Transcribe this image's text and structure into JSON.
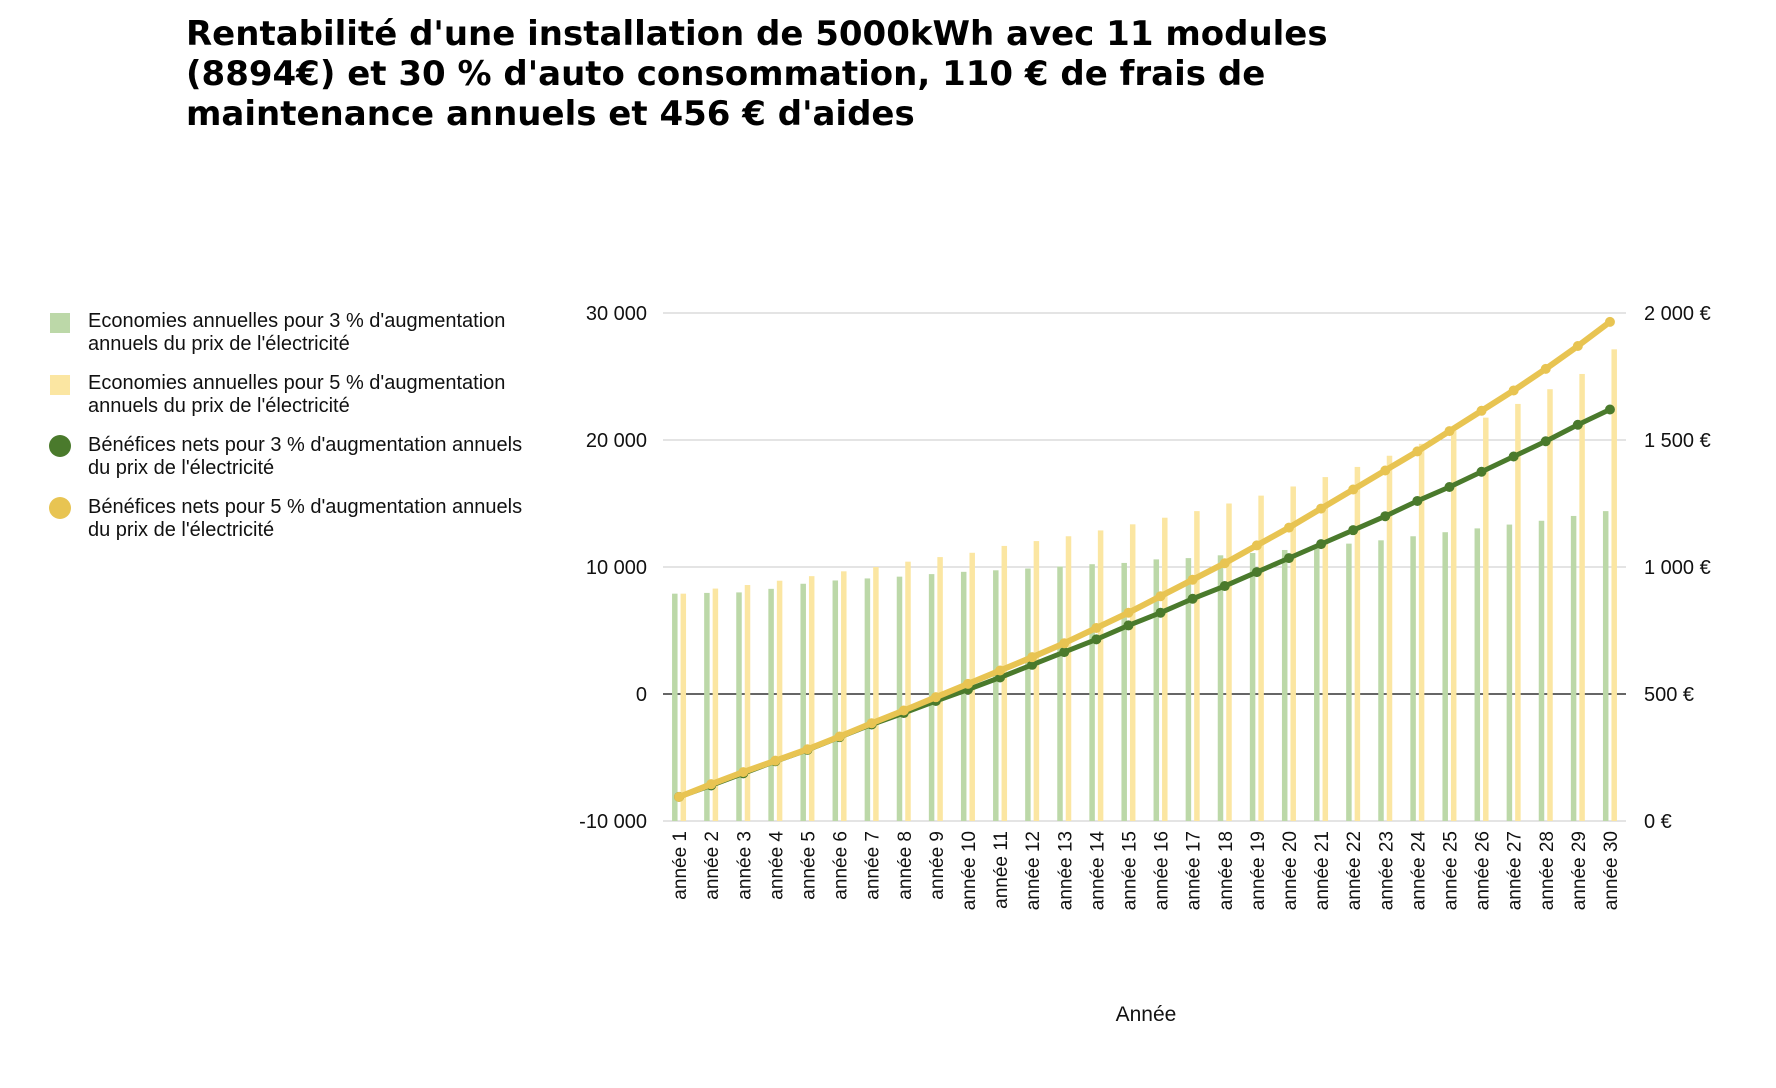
{
  "chart_data": {
    "type": "bar+line",
    "title": "Rentabilité d'une installation de 5000kWh avec 11 modules (8894€) et 30 % d'auto consommation, 110 € de frais de maintenance annuels et 456 € d'aides",
    "xlabel": "Année",
    "ylabel_left": "",
    "ylabel_right": "",
    "legend_position": "left",
    "grid": true,
    "y_left": {
      "range": [
        -10000,
        30000
      ],
      "ticks": [
        -10000,
        0,
        10000,
        20000,
        30000
      ],
      "tick_labels": [
        "-10 000",
        "0",
        "10 000",
        "20 000",
        "30 000"
      ]
    },
    "y_right": {
      "range": [
        0,
        2000
      ],
      "ticks": [
        0,
        500,
        1000,
        1500,
        2000
      ],
      "tick_labels": [
        "0 €",
        "500 €",
        "1 000 €",
        "1 500 €",
        "2 000 €"
      ]
    },
    "categories": [
      "année 1",
      "année 2",
      "année 3",
      "année 4",
      "année 5",
      "année 6",
      "année 7",
      "année 8",
      "année 9",
      "année 10",
      "année 11",
      "année 12",
      "année 13",
      "année 14",
      "année 15",
      "année 16",
      "année 17",
      "année 18",
      "année 19",
      "année 20",
      "année 21",
      "année 22",
      "année 23",
      "année 24",
      "année 25",
      "année 26",
      "année 27",
      "année 28",
      "année 29",
      "année 30"
    ],
    "series": [
      {
        "name": "Economies annuelles pour 3 % d'augmentation annuels du prix de l'électricité",
        "type": "bar",
        "axis": "right",
        "color": "#bcd8a8",
        "values": [
          895,
          898,
          900,
          914,
          934,
          947,
          955,
          962,
          972,
          981,
          987,
          994,
          1002,
          1011,
          1016,
          1030,
          1035,
          1046,
          1055,
          1067,
          1081,
          1092,
          1105,
          1121,
          1137,
          1152,
          1167,
          1182,
          1201,
          1220
        ]
      },
      {
        "name": "Economies annuelles pour 5 % d'augmentation annuels du prix de l'électricité",
        "type": "bar",
        "axis": "right",
        "color": "#fbe6a2",
        "values": [
          895,
          915,
          929,
          946,
          964,
          983,
          1000,
          1021,
          1039,
          1056,
          1083,
          1102,
          1121,
          1144,
          1168,
          1194,
          1220,
          1250,
          1281,
          1317,
          1354,
          1394,
          1438,
          1485,
          1536,
          1588,
          1642,
          1700,
          1760,
          1857
        ]
      },
      {
        "name": "Bénéfices nets pour 3 % d'augmentation annuels du prix de l'électricité",
        "type": "line",
        "axis": "left",
        "color": "#4a7a2c",
        "values": [
          -8100,
          -7200,
          -6250,
          -5300,
          -4400,
          -3400,
          -2400,
          -1500,
          -550,
          350,
          1300,
          2300,
          3300,
          4300,
          5400,
          6400,
          7500,
          8500,
          9600,
          10700,
          11800,
          12900,
          14000,
          15200,
          16300,
          17500,
          18700,
          19900,
          21200,
          22400
        ]
      },
      {
        "name": "Bénéfices nets pour 5 % d'augmentation annuels du prix de l'électricité",
        "type": "line",
        "axis": "left",
        "color": "#e8c452",
        "values": [
          -8100,
          -7100,
          -6150,
          -5250,
          -4350,
          -3350,
          -2300,
          -1300,
          -250,
          800,
          1850,
          2900,
          4000,
          5200,
          6400,
          7700,
          9000,
          10300,
          11700,
          13100,
          14600,
          16100,
          17600,
          19100,
          20700,
          22300,
          23900,
          25600,
          27400,
          29300
        ]
      }
    ]
  }
}
